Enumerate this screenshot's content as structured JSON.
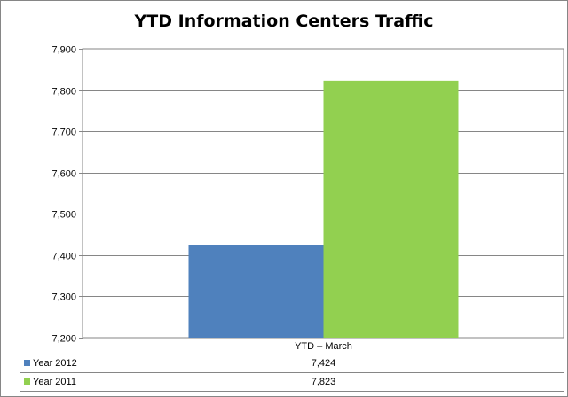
{
  "chart_data": {
    "type": "bar",
    "title": "YTD Information Centers Traffic",
    "categories": [
      "YTD – March"
    ],
    "series": [
      {
        "name": "Year 2012",
        "values": [
          7424
        ],
        "color": "#4f81bd"
      },
      {
        "name": "Year 2011",
        "values": [
          7823
        ],
        "color": "#92d050"
      }
    ],
    "data_labels": [
      "7,424",
      "7,823"
    ],
    "ylim": [
      7200,
      7900
    ],
    "yticks": [
      7200,
      7300,
      7400,
      7500,
      7600,
      7700,
      7800,
      7900
    ],
    "ytick_labels": [
      "7,200",
      "7,300",
      "7,400",
      "7,500",
      "7,600",
      "7,700",
      "7,800",
      "7,900"
    ],
    "grid": true,
    "legend": "data-table"
  }
}
